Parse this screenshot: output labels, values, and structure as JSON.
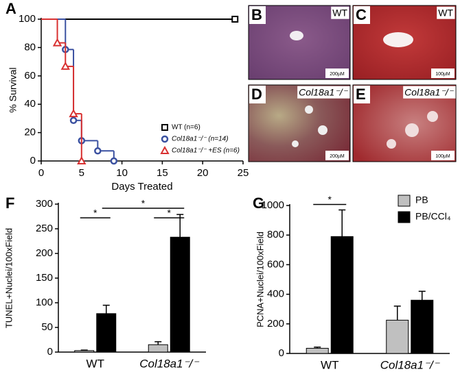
{
  "chart_data": [
    {
      "type": "line",
      "panel": "A",
      "xlabel": "Days Treated",
      "ylabel": "% Survival",
      "xlim": [
        0,
        25
      ],
      "xticks": [
        0,
        5,
        10,
        15,
        20,
        25
      ],
      "ylim": [
        0,
        100
      ],
      "yticks": [
        0,
        20,
        40,
        60,
        80,
        100
      ],
      "series": [
        {
          "name": "WT (n=6)",
          "color": "#000000",
          "marker": "square",
          "x": [
            0,
            24
          ],
          "values": [
            100,
            100
          ]
        },
        {
          "name": "Col18a1⁻/⁻ (n=14)",
          "color": "#3a50a0",
          "marker": "circle",
          "x": [
            0,
            3,
            4,
            5,
            7,
            9
          ],
          "values": [
            100,
            78.6,
            28.6,
            14.3,
            7.1,
            0
          ]
        },
        {
          "name": "Col18a1⁻/⁻ +ES (n=6)",
          "color": "#d83030",
          "marker": "triangle",
          "x": [
            0,
            2,
            3,
            4,
            5
          ],
          "values": [
            100,
            83.3,
            66.7,
            33.3,
            0
          ]
        }
      ]
    },
    {
      "type": "bar",
      "panel": "F",
      "ylabel": "TUNEL+Nuclei/100xField",
      "categories": [
        "WT",
        "Col18a1⁻/⁻"
      ],
      "ylim": [
        0,
        300
      ],
      "yticks": [
        0,
        50,
        100,
        150,
        200,
        250,
        300
      ],
      "series": [
        {
          "name": "PB",
          "color": "#c0c0c0",
          "values": [
            3,
            15
          ],
          "errors": [
            1,
            6
          ]
        },
        {
          "name": "PB/CCl₄",
          "color": "#000000",
          "values": [
            78,
            233
          ],
          "errors": [
            17,
            46
          ]
        }
      ],
      "annotations": [
        "*",
        "*",
        "*"
      ]
    },
    {
      "type": "bar",
      "panel": "G",
      "ylabel": "PCNA+Nuclei/100xField",
      "categories": [
        "WT",
        "Col18a1⁻/⁻"
      ],
      "ylim": [
        0,
        1000
      ],
      "yticks": [
        0,
        200,
        400,
        600,
        800,
        1000
      ],
      "legend": true,
      "series": [
        {
          "name": "PB",
          "color": "#c0c0c0",
          "values": [
            35,
            225
          ],
          "errors": [
            8,
            95
          ]
        },
        {
          "name": "PB/CCl₄",
          "color": "#000000",
          "values": [
            790,
            360
          ],
          "errors": [
            180,
            60
          ]
        }
      ],
      "annotations": [
        "*"
      ]
    }
  ],
  "micrographs": [
    {
      "letter": "B",
      "label": "WT",
      "scale": "200µM"
    },
    {
      "letter": "C",
      "label": "WT",
      "scale": "100µM"
    },
    {
      "letter": "D",
      "label": "Col18a1⁻/⁻",
      "scale": "200µM"
    },
    {
      "letter": "E",
      "label": "Col18a1⁻/⁻",
      "scale": "100µM"
    }
  ]
}
